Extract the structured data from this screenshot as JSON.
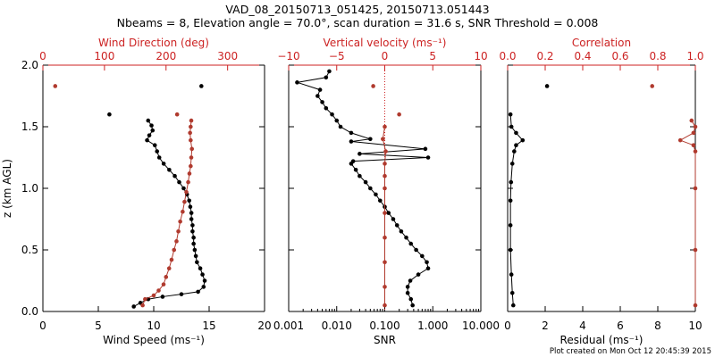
{
  "header": {
    "title_line1": "VAD_08_20150713_051425, 20150713.051443",
    "title_line2": "Nbeams = 8, Elevation angle = 70.0°, scan duration = 31.6 s, SNR Threshold = 0.008"
  },
  "footer": {
    "text": "Plot created on Mon Oct 12 20:45:39 2015"
  },
  "colors": {
    "black": "#000000",
    "red": "#b03a2e",
    "axis_red": "#cc2222"
  },
  "chart_data": [
    {
      "type": "scatter",
      "panel": "wind",
      "ylabel": "z (km AGL)",
      "ylim": [
        0,
        2.0
      ],
      "yticks": [
        "0.0",
        "0.5",
        "1.0",
        "1.5",
        "2.0"
      ],
      "bottom_axis": {
        "label": "Wind Speed (ms⁻¹)",
        "range": [
          0,
          20
        ],
        "ticks": [
          "0",
          "5",
          "10",
          "15",
          "20"
        ]
      },
      "top_axis": {
        "label": "Wind Direction (deg)",
        "range": [
          0,
          360
        ],
        "ticks": [
          "0",
          "100",
          "200",
          "300"
        ]
      },
      "series": [
        {
          "axis": "bottom",
          "color": "black",
          "style": "line+markers",
          "points": [
            [
              8.2,
              0.04
            ],
            [
              8.8,
              0.07
            ],
            [
              9.5,
              0.1
            ],
            [
              10.8,
              0.12
            ],
            [
              12.5,
              0.14
            ],
            [
              14.0,
              0.16
            ],
            [
              14.5,
              0.2
            ],
            [
              14.6,
              0.25
            ],
            [
              14.4,
              0.3
            ],
            [
              14.2,
              0.35
            ],
            [
              13.9,
              0.4
            ],
            [
              13.8,
              0.45
            ],
            [
              13.7,
              0.5
            ],
            [
              13.6,
              0.55
            ],
            [
              13.6,
              0.6
            ],
            [
              13.5,
              0.65
            ],
            [
              13.5,
              0.7
            ],
            [
              13.4,
              0.75
            ],
            [
              13.4,
              0.8
            ],
            [
              13.3,
              0.85
            ],
            [
              13.2,
              0.9
            ],
            [
              13.0,
              0.95
            ],
            [
              12.7,
              1.0
            ],
            [
              12.3,
              1.05
            ],
            [
              11.9,
              1.1
            ],
            [
              11.4,
              1.15
            ],
            [
              10.9,
              1.2
            ],
            [
              10.5,
              1.25
            ],
            [
              10.3,
              1.3
            ],
            [
              10.1,
              1.35
            ],
            [
              9.4,
              1.39
            ],
            [
              9.6,
              1.43
            ],
            [
              9.9,
              1.47
            ],
            [
              9.8,
              1.51
            ],
            [
              9.5,
              1.55
            ]
          ]
        },
        {
          "axis": "bottom",
          "color": "black",
          "style": "markers",
          "points": [
            [
              6.0,
              1.6
            ],
            [
              14.3,
              1.83
            ]
          ]
        },
        {
          "axis": "top",
          "color": "red",
          "style": "line+markers",
          "points": [
            [
              162,
              0.05
            ],
            [
              166,
              0.1
            ],
            [
              180,
              0.13
            ],
            [
              188,
              0.17
            ],
            [
              196,
              0.22
            ],
            [
              200,
              0.28
            ],
            [
              205,
              0.35
            ],
            [
              209,
              0.42
            ],
            [
              213,
              0.5
            ],
            [
              217,
              0.57
            ],
            [
              220,
              0.65
            ],
            [
              223,
              0.73
            ],
            [
              227,
              0.81
            ],
            [
              230,
              0.89
            ],
            [
              233,
              0.97
            ],
            [
              236,
              1.05
            ],
            [
              238,
              1.12
            ],
            [
              240,
              1.18
            ],
            [
              241,
              1.25
            ],
            [
              242,
              1.32
            ],
            [
              240,
              1.39
            ],
            [
              239,
              1.45
            ],
            [
              240,
              1.5
            ],
            [
              241,
              1.55
            ]
          ]
        },
        {
          "axis": "top",
          "color": "red",
          "style": "markers",
          "points": [
            [
              20,
              1.83
            ],
            [
              218,
              1.6
            ]
          ]
        }
      ]
    },
    {
      "type": "scatter",
      "panel": "snr",
      "ylim": [
        0,
        2.0
      ],
      "bottom_axis": {
        "label": "SNR",
        "scale": "log",
        "range": [
          0.001,
          10
        ],
        "ticks": [
          "0.001",
          "0.010",
          "0.100",
          "1.000",
          "10.000"
        ]
      },
      "top_axis": {
        "label": "Vertical velocity (ms⁻¹)",
        "range": [
          -10,
          10
        ],
        "ticks": [
          "−10",
          "−5",
          "0",
          "5",
          "10"
        ]
      },
      "zero_line": 0,
      "series": [
        {
          "axis": "bottom",
          "color": "black",
          "style": "line+markers",
          "points": [
            [
              0.38,
              0.05
            ],
            [
              0.35,
              0.1
            ],
            [
              0.3,
              0.15
            ],
            [
              0.3,
              0.2
            ],
            [
              0.34,
              0.25
            ],
            [
              0.5,
              0.3
            ],
            [
              0.8,
              0.35
            ],
            [
              0.75,
              0.4
            ],
            [
              0.6,
              0.45
            ],
            [
              0.45,
              0.5
            ],
            [
              0.35,
              0.55
            ],
            [
              0.28,
              0.6
            ],
            [
              0.22,
              0.65
            ],
            [
              0.18,
              0.7
            ],
            [
              0.15,
              0.75
            ],
            [
              0.12,
              0.8
            ],
            [
              0.1,
              0.85
            ],
            [
              0.08,
              0.9
            ],
            [
              0.065,
              0.95
            ],
            [
              0.05,
              1.0
            ],
            [
              0.04,
              1.05
            ],
            [
              0.03,
              1.1
            ],
            [
              0.025,
              1.15
            ],
            [
              0.02,
              1.2
            ],
            [
              0.022,
              1.22
            ],
            [
              0.8,
              1.25
            ],
            [
              0.03,
              1.28
            ],
            [
              0.7,
              1.32
            ],
            [
              0.02,
              1.38
            ],
            [
              0.05,
              1.4
            ],
            [
              0.02,
              1.45
            ],
            [
              0.012,
              1.5
            ],
            [
              0.01,
              1.55
            ],
            [
              0.008,
              1.6
            ],
            [
              0.006,
              1.65
            ],
            [
              0.005,
              1.7
            ],
            [
              0.004,
              1.75
            ],
            [
              0.0045,
              1.8
            ],
            [
              0.0015,
              1.86
            ],
            [
              0.006,
              1.9
            ],
            [
              0.007,
              1.95
            ]
          ]
        },
        {
          "axis": "top",
          "color": "red",
          "style": "line+markers",
          "points": [
            [
              0,
              0.05
            ],
            [
              0,
              0.2
            ],
            [
              0,
              0.4
            ],
            [
              0,
              0.6
            ],
            [
              0,
              0.8
            ],
            [
              0,
              1.0
            ],
            [
              0,
              1.1
            ],
            [
              0,
              1.2
            ],
            [
              0.1,
              1.3
            ],
            [
              -0.2,
              1.4
            ],
            [
              0,
              1.5
            ]
          ]
        },
        {
          "axis": "top",
          "color": "red",
          "style": "markers",
          "points": [
            [
              -1.2,
              1.83
            ],
            [
              1.5,
              1.6
            ]
          ]
        }
      ]
    },
    {
      "type": "scatter",
      "panel": "correlation",
      "ylim": [
        0,
        2.0
      ],
      "bottom_axis": {
        "label": "Residual (ms⁻¹)",
        "range": [
          0,
          10
        ],
        "ticks": [
          "0",
          "2",
          "4",
          "6",
          "8",
          "10"
        ]
      },
      "top_axis": {
        "label": "Correlation",
        "range": [
          0,
          1.0
        ],
        "ticks": [
          "0.0",
          "0.2",
          "0.4",
          "0.6",
          "0.8",
          "1.0"
        ]
      },
      "series": [
        {
          "axis": "bottom",
          "color": "black",
          "style": "line+markers",
          "points": [
            [
              0.3,
              0.05
            ],
            [
              0.25,
              0.15
            ],
            [
              0.2,
              0.3
            ],
            [
              0.15,
              0.5
            ],
            [
              0.15,
              0.7
            ],
            [
              0.15,
              0.9
            ],
            [
              0.18,
              1.05
            ],
            [
              0.25,
              1.2
            ],
            [
              0.35,
              1.3
            ],
            [
              0.45,
              1.35
            ],
            [
              0.8,
              1.39
            ],
            [
              0.45,
              1.45
            ],
            [
              0.2,
              1.5
            ],
            [
              0.15,
              1.6
            ]
          ]
        },
        {
          "axis": "bottom",
          "color": "black",
          "style": "markers",
          "points": [
            [
              2.1,
              1.83
            ]
          ]
        },
        {
          "axis": "top",
          "color": "red",
          "style": "line+markers",
          "points": [
            [
              1.0,
              0.05
            ],
            [
              1.0,
              0.5
            ],
            [
              1.0,
              1.0
            ],
            [
              1.0,
              1.3
            ],
            [
              0.99,
              1.35
            ],
            [
              0.92,
              1.39
            ],
            [
              0.99,
              1.45
            ],
            [
              1.0,
              1.5
            ],
            [
              0.98,
              1.55
            ]
          ]
        },
        {
          "axis": "top",
          "color": "red",
          "style": "markers",
          "points": [
            [
              0.77,
              1.83
            ]
          ]
        }
      ]
    }
  ]
}
